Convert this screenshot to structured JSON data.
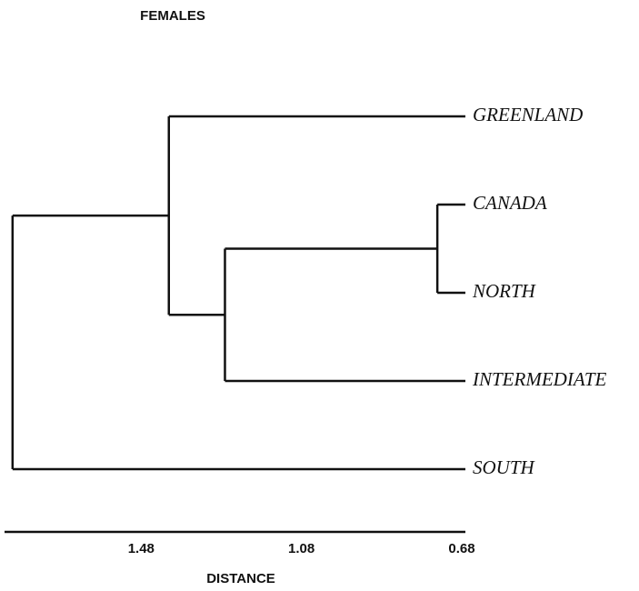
{
  "chart_data": {
    "type": "dendrogram",
    "title": "FEMALES",
    "xlabel": "DISTANCE",
    "leaves": [
      "GREENLAND",
      "CANADA",
      "NORTH",
      "INTERMEDIATE",
      "SOUTH"
    ],
    "merges": [
      {
        "join": [
          1,
          2
        ],
        "height": 0.75
      },
      {
        "join": [
          5,
          3
        ],
        "height": 1.28
      },
      {
        "join": [
          0,
          6
        ],
        "height": 1.42
      },
      {
        "join": [
          7,
          4
        ],
        "height": 1.81
      }
    ],
    "xlim": [
      1.83,
      0.68
    ],
    "xticks": [
      1.48,
      1.08,
      0.68
    ]
  }
}
